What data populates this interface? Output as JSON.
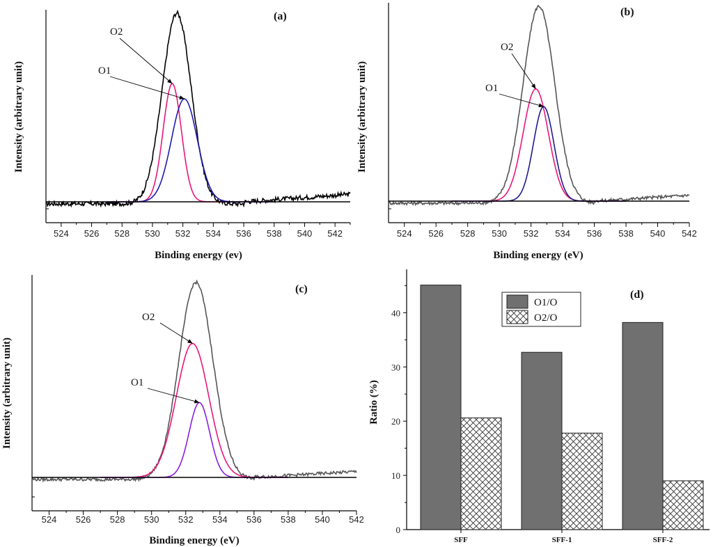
{
  "chart_data": [
    {
      "panel": "(a)",
      "type": "line",
      "xlabel": "Binding energy (ev)",
      "ylabel": "Intensity (arbitrary unit)",
      "xlim": [
        523,
        543
      ],
      "ylim": [
        0,
        1.1
      ],
      "xticks": [
        524,
        526,
        528,
        530,
        532,
        534,
        536,
        538,
        540,
        542
      ],
      "noise_from": 538,
      "series": [
        {
          "name": "measured",
          "color": "#000000",
          "kind": "envelope",
          "center": 531.6,
          "amp": 1.0,
          "sigma": 0.95,
          "baseline_left": 0.0,
          "baseline_right": 0.04,
          "noise": 0.012
        },
        {
          "name": "O2",
          "color": "#e8177a",
          "kind": "gaussian",
          "center": 531.3,
          "amp": 0.62,
          "sigma": 0.6
        },
        {
          "name": "O1",
          "color": "#1f1ab0",
          "kind": "gaussian",
          "center": 532.1,
          "amp": 0.54,
          "sigma": 0.85
        },
        {
          "name": "baseline",
          "color": "#000000",
          "kind": "flat",
          "value": 0.0
        }
      ],
      "annotations": [
        {
          "text": "O2",
          "target_x": 531.3,
          "target_y": 0.62
        },
        {
          "text": "O1",
          "target_x": 532.1,
          "target_y": 0.54
        }
      ]
    },
    {
      "panel": "(b)",
      "type": "line",
      "xlabel": "Binding energy (eV)",
      "ylabel": "Intensity (arbitrary unit)",
      "xlim": [
        523,
        542
      ],
      "ylim": [
        0,
        1.1
      ],
      "xticks": [
        524,
        526,
        528,
        530,
        532,
        534,
        536,
        538,
        540,
        542
      ],
      "series": [
        {
          "name": "measured",
          "color": "#555555",
          "kind": "envelope",
          "center": 532.5,
          "amp": 1.0,
          "sigma": 1.0,
          "baseline_left": 0.0,
          "baseline_right": 0.03,
          "noise": 0.008
        },
        {
          "name": "O2",
          "color": "#e8177a",
          "kind": "gaussian",
          "center": 532.3,
          "amp": 0.57,
          "sigma": 0.8
        },
        {
          "name": "O1",
          "color": "#1f1a90",
          "kind": "gaussian",
          "center": 532.8,
          "amp": 0.48,
          "sigma": 0.65
        },
        {
          "name": "baseline",
          "color": "#000000",
          "kind": "flat",
          "value": 0.0
        }
      ],
      "annotations": [
        {
          "text": "O2",
          "target_x": 532.3,
          "target_y": 0.57
        },
        {
          "text": "O1",
          "target_x": 532.8,
          "target_y": 0.48
        }
      ]
    },
    {
      "panel": "(c)",
      "type": "line",
      "xlabel": "Binding energy (eV)",
      "ylabel": "Intensity (arbitrary unit)",
      "xlim": [
        523,
        542
      ],
      "ylim": [
        0,
        1.1
      ],
      "xticks": [
        524,
        526,
        528,
        530,
        532,
        534,
        536,
        538,
        540,
        542
      ],
      "series": [
        {
          "name": "measured",
          "color": "#555555",
          "kind": "envelope",
          "center": 532.6,
          "amp": 1.0,
          "sigma": 1.0,
          "baseline_left": 0.0,
          "baseline_right": 0.03,
          "noise": 0.008
        },
        {
          "name": "O2",
          "color": "#e8177a",
          "kind": "gaussian",
          "center": 532.4,
          "amp": 0.68,
          "sigma": 0.95
        },
        {
          "name": "O1",
          "color": "#8a1ee0",
          "kind": "gaussian",
          "center": 532.8,
          "amp": 0.38,
          "sigma": 0.6
        },
        {
          "name": "baseline",
          "color": "#000000",
          "kind": "flat",
          "value": 0.0
        }
      ],
      "annotations": [
        {
          "text": "O2",
          "target_x": 532.4,
          "target_y": 0.68
        },
        {
          "text": "O1",
          "target_x": 532.8,
          "target_y": 0.38
        }
      ]
    },
    {
      "panel": "(d)",
      "type": "bar",
      "ylabel": "Ratio (%)",
      "categories": [
        "SFF",
        "SFF-1",
        "SFF-2"
      ],
      "ylim": [
        0,
        48
      ],
      "yticks": [
        0,
        10,
        20,
        30,
        40
      ],
      "series": [
        {
          "name": "O1/O",
          "values": [
            45.1,
            32.7,
            38.2
          ],
          "fill": "#707070"
        },
        {
          "name": "O2/O",
          "values": [
            20.6,
            17.8,
            9.0
          ],
          "fill": "crosshatch"
        }
      ]
    }
  ]
}
